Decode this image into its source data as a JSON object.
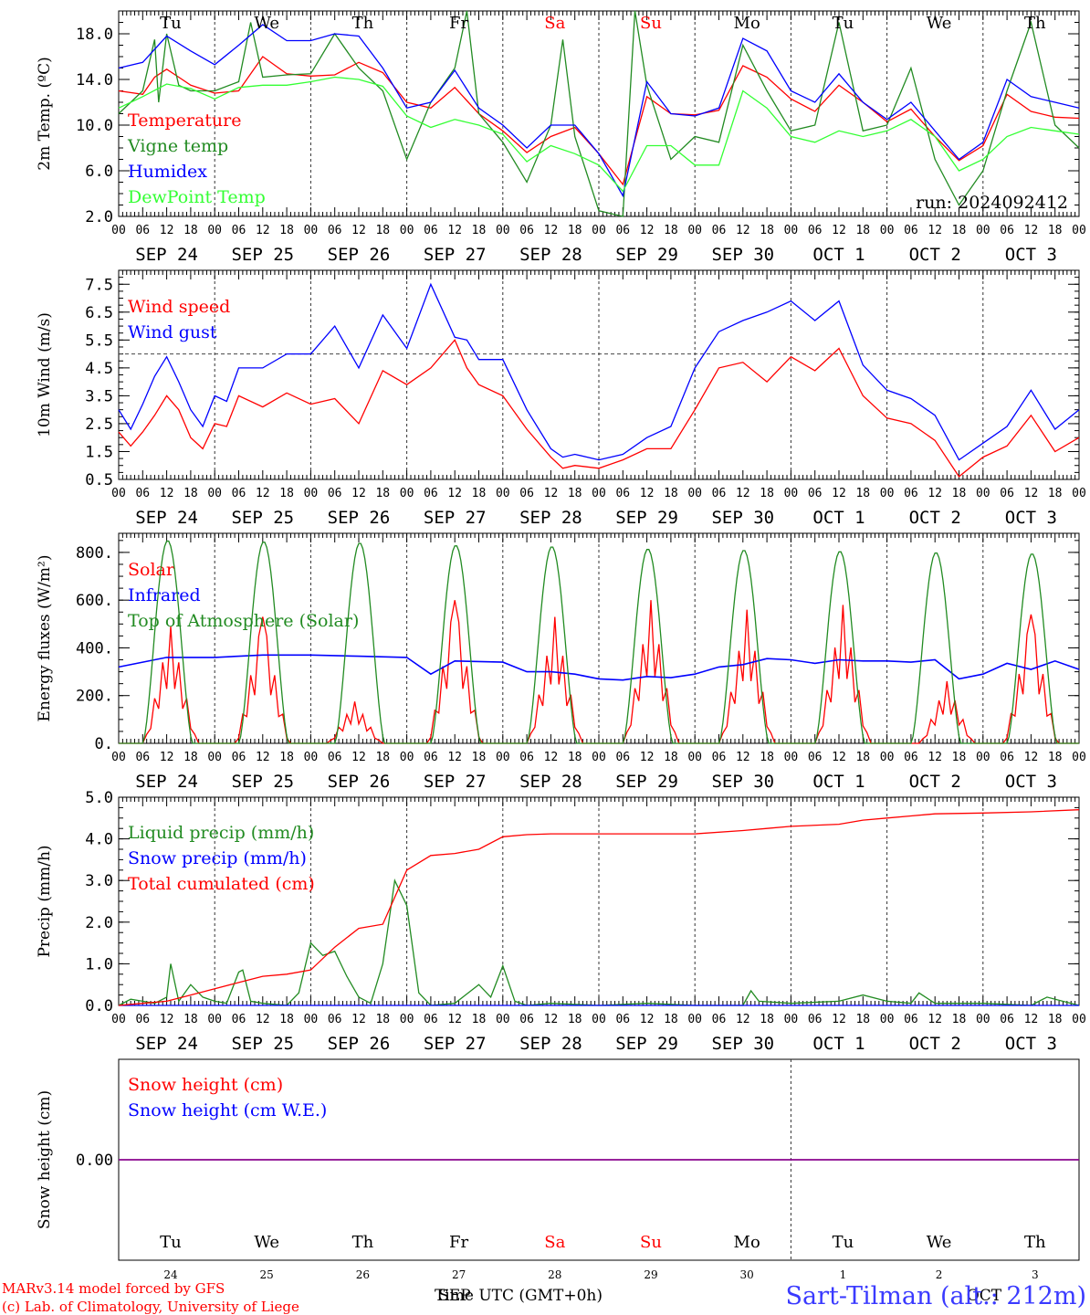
{
  "colors": {
    "red": "#ff0000",
    "green": "#228b22",
    "blue": "#0000ff",
    "lightgreen": "#33ff33",
    "purple": "#8b008b",
    "axis": "#000000",
    "grid": "#555555"
  },
  "days": [
    "Tu",
    "We",
    "Th",
    "Fr",
    "Sa",
    "Su",
    "Mo",
    "Tu",
    "We",
    "Th"
  ],
  "weekend_days": [
    4,
    5
  ],
  "date_labels": [
    "SEP 24",
    "SEP 25",
    "SEP 26",
    "SEP 27",
    "SEP 28",
    "SEP 29",
    "SEP 30",
    "OCT  1",
    "OCT  2",
    "OCT  3"
  ],
  "hour_labels": [
    "00",
    "06",
    "12",
    "18"
  ],
  "hour_end_label": "00",
  "day_numbers": [
    "24",
    "25",
    "26",
    "27",
    "28",
    "29",
    "30",
    "1",
    "2",
    "3"
  ],
  "run_label": "run: 2024092412",
  "footer": {
    "model": "MARv3.14 model forced by GFS",
    "lab": "(c) Lab. of Climatology, University of Liege",
    "time_label": "Time UTC (GMT+0h)",
    "month_left": "SEP",
    "month_right": "OCT",
    "station": "Sart-Tilman (alt.: 212m)"
  },
  "chart_data": [
    {
      "id": "temp",
      "type": "line",
      "ylabel": "2m Temp. (ºC)",
      "ylim": [
        2.0,
        20.0
      ],
      "yticks": [
        "2.0",
        "6.0",
        "10.0",
        "14.0",
        "18.0"
      ],
      "yticks_values": [
        2,
        6,
        10,
        14,
        18
      ],
      "x_unit": "hours since SEP 24 00 UTC",
      "series": [
        {
          "name": "Temperature",
          "color": "#ff0000",
          "x": [
            0,
            6,
            9,
            12,
            15,
            18,
            24,
            30,
            36,
            42,
            48,
            54,
            60,
            66,
            72,
            78,
            84,
            90,
            96,
            102,
            108,
            114,
            120,
            126,
            132,
            138,
            144,
            150,
            156,
            162,
            168,
            174,
            180,
            186,
            192,
            198,
            204,
            210,
            216,
            222,
            228,
            234,
            240
          ],
          "y": [
            13.0,
            12.7,
            14.2,
            14.9,
            14.2,
            13.5,
            12.8,
            13.0,
            16.0,
            14.5,
            14.3,
            14.4,
            15.5,
            14.6,
            12.0,
            11.5,
            13.3,
            11.0,
            9.5,
            7.6,
            9.0,
            9.8,
            7.5,
            4.8,
            12.5,
            11.0,
            10.9,
            11.3,
            15.2,
            14.2,
            12.3,
            11.2,
            13.5,
            12.0,
            10.3,
            11.4,
            9.0,
            6.9,
            8.2,
            12.7,
            11.2,
            10.7,
            10.6
          ]
        },
        {
          "name": "Vigne temp",
          "color": "#228b22",
          "x": [
            0,
            6,
            9,
            10,
            12,
            15,
            18,
            24,
            30,
            33,
            36,
            42,
            48,
            54,
            60,
            66,
            72,
            78,
            84,
            87,
            90,
            96,
            102,
            108,
            111,
            114,
            120,
            126,
            129,
            132,
            138,
            144,
            150,
            156,
            162,
            168,
            174,
            180,
            186,
            192,
            198,
            204,
            210,
            216,
            222,
            228,
            234,
            240
          ],
          "y": [
            11.0,
            13.0,
            17.5,
            12.0,
            18.0,
            13.5,
            13.0,
            13.0,
            13.8,
            19.0,
            14.2,
            14.4,
            14.5,
            18.0,
            15.0,
            13.0,
            7.0,
            12.0,
            15.0,
            20.0,
            11.0,
            8.5,
            5.0,
            10.0,
            17.5,
            9.0,
            2.5,
            1.5,
            20.0,
            13.5,
            7.0,
            9.0,
            8.5,
            17.0,
            13.0,
            9.5,
            10.0,
            19.0,
            9.5,
            10.0,
            15.0,
            7.0,
            3.0,
            6.0,
            13.0,
            19.0,
            10.0,
            8.0
          ]
        },
        {
          "name": "Humidex",
          "color": "#0000ff",
          "x": [
            0,
            6,
            12,
            18,
            24,
            30,
            36,
            42,
            48,
            54,
            60,
            66,
            72,
            78,
            84,
            90,
            96,
            102,
            108,
            114,
            120,
            126,
            132,
            138,
            144,
            150,
            156,
            162,
            168,
            174,
            180,
            186,
            192,
            198,
            204,
            210,
            216,
            222,
            228,
            234,
            240
          ],
          "y": [
            15.0,
            15.5,
            17.8,
            16.5,
            15.3,
            17.0,
            18.8,
            17.4,
            17.4,
            18.0,
            17.8,
            15.0,
            11.5,
            12.0,
            14.8,
            11.5,
            10.0,
            8.0,
            10.0,
            10.0,
            7.5,
            3.8,
            13.8,
            11.0,
            10.8,
            11.5,
            17.6,
            16.5,
            13.0,
            12.0,
            14.5,
            12.0,
            10.5,
            12.0,
            9.5,
            7.0,
            8.5,
            14.0,
            12.5,
            12.0,
            11.5
          ]
        },
        {
          "name": "DewPoint Temp",
          "color": "#33ff33",
          "x": [
            0,
            6,
            12,
            18,
            24,
            30,
            36,
            42,
            48,
            54,
            60,
            66,
            72,
            78,
            84,
            90,
            96,
            102,
            108,
            114,
            120,
            126,
            132,
            138,
            144,
            150,
            156,
            162,
            168,
            174,
            180,
            186,
            192,
            198,
            204,
            210,
            216,
            222,
            228,
            234,
            240
          ],
          "y": [
            11.5,
            12.5,
            13.6,
            13.2,
            12.3,
            13.3,
            13.5,
            13.5,
            13.8,
            14.2,
            14.0,
            13.4,
            10.8,
            9.8,
            10.5,
            10.0,
            9.2,
            6.8,
            8.2,
            7.5,
            6.5,
            4.2,
            8.2,
            8.2,
            6.5,
            6.5,
            13.0,
            11.5,
            9.0,
            8.5,
            9.5,
            9.0,
            9.5,
            10.5,
            9.0,
            6.0,
            7.0,
            9.0,
            9.8,
            9.5,
            9.2
          ]
        }
      ]
    },
    {
      "id": "wind",
      "type": "line",
      "ylabel": "10m Wind (m/s)",
      "ylim": [
        0.5,
        8.0
      ],
      "yticks": [
        "0.5",
        "1.5",
        "2.5",
        "3.5",
        "4.5",
        "5.5",
        "6.5",
        "7.5"
      ],
      "yticks_values": [
        0.5,
        1.5,
        2.5,
        3.5,
        4.5,
        5.5,
        6.5,
        7.5
      ],
      "reference_line": 5.0,
      "x_unit": "hours since SEP 24 00 UTC",
      "series": [
        {
          "name": "Wind speed",
          "color": "#ff0000",
          "x": [
            0,
            3,
            6,
            9,
            12,
            15,
            18,
            21,
            24,
            27,
            30,
            36,
            42,
            48,
            54,
            60,
            66,
            72,
            78,
            84,
            87,
            90,
            96,
            102,
            108,
            111,
            114,
            120,
            126,
            132,
            138,
            144,
            150,
            156,
            162,
            168,
            174,
            180,
            186,
            192,
            198,
            204,
            210,
            216,
            222,
            228,
            234,
            240
          ],
          "y": [
            2.2,
            1.7,
            2.2,
            2.8,
            3.5,
            3.0,
            2.0,
            1.6,
            2.5,
            2.4,
            3.5,
            3.1,
            3.6,
            3.2,
            3.4,
            2.5,
            4.4,
            3.9,
            4.5,
            5.5,
            4.5,
            3.9,
            3.5,
            2.3,
            1.3,
            0.9,
            1.0,
            0.9,
            1.2,
            1.6,
            1.6,
            3.0,
            4.5,
            4.7,
            4.0,
            4.9,
            4.4,
            5.2,
            3.5,
            2.7,
            2.5,
            1.9,
            0.6,
            1.3,
            1.7,
            2.8,
            1.5,
            2.0
          ]
        },
        {
          "name": "Wind gust",
          "color": "#0000ff",
          "x": [
            0,
            3,
            6,
            9,
            12,
            15,
            18,
            21,
            24,
            27,
            30,
            36,
            42,
            48,
            54,
            60,
            66,
            72,
            78,
            84,
            87,
            90,
            96,
            102,
            108,
            111,
            114,
            120,
            126,
            132,
            138,
            144,
            150,
            156,
            162,
            168,
            174,
            180,
            186,
            192,
            198,
            204,
            210,
            216,
            222,
            228,
            234,
            240
          ],
          "y": [
            3.0,
            2.3,
            3.2,
            4.2,
            4.9,
            4.0,
            3.0,
            2.4,
            3.5,
            3.3,
            4.5,
            4.5,
            5.0,
            5.0,
            6.0,
            4.5,
            6.4,
            5.2,
            7.5,
            5.6,
            5.5,
            4.8,
            4.8,
            3.0,
            1.6,
            1.3,
            1.4,
            1.2,
            1.4,
            2.0,
            2.4,
            4.5,
            5.8,
            6.2,
            6.5,
            6.9,
            6.2,
            6.9,
            4.6,
            3.7,
            3.4,
            2.8,
            1.2,
            1.8,
            2.4,
            3.7,
            2.3,
            3.0
          ]
        }
      ]
    },
    {
      "id": "energy",
      "type": "line",
      "ylabel": "Energy fluxes (W/m²)",
      "ylim": [
        0,
        880
      ],
      "yticks": [
        "0.",
        "200.",
        "400.",
        "600.",
        "800."
      ],
      "yticks_values": [
        0,
        200,
        400,
        600,
        800
      ],
      "x_unit": "hours since SEP 24 00 UTC",
      "series": [
        {
          "name": "Solar",
          "color": "#ff0000",
          "peak_w": [
            490,
            530,
            175,
            600,
            530,
            600,
            560,
            580,
            260,
            540
          ],
          "peak_hour": [
            13,
            12,
            11,
            12,
            13,
            13,
            13,
            13,
            15,
            12
          ],
          "halfwidth_h": 5
        },
        {
          "name": "Infrared",
          "color": "#0000ff",
          "x": [
            0,
            12,
            24,
            36,
            48,
            60,
            72,
            78,
            84,
            96,
            102,
            108,
            114,
            120,
            126,
            132,
            138,
            144,
            150,
            156,
            162,
            168,
            174,
            180,
            186,
            192,
            198,
            204,
            210,
            216,
            222,
            228,
            234,
            240
          ],
          "y": [
            320,
            360,
            360,
            370,
            370,
            365,
            360,
            290,
            345,
            340,
            300,
            300,
            290,
            270,
            265,
            280,
            275,
            290,
            320,
            330,
            355,
            350,
            335,
            350,
            345,
            345,
            340,
            350,
            270,
            290,
            335,
            310,
            345,
            310
          ]
        },
        {
          "name": "Top of Atmosphere (Solar)",
          "color": "#228b22",
          "peak_w": [
            850,
            845,
            840,
            830,
            825,
            815,
            810,
            805,
            800,
            795
          ],
          "sunrise_h": 6,
          "sunset_h": 18.5
        }
      ]
    },
    {
      "id": "precip",
      "type": "line",
      "ylabel": "Precip (mm/h)",
      "ylim": [
        0,
        5.0
      ],
      "yticks": [
        "0.0",
        "1.0",
        "2.0",
        "3.0",
        "4.0",
        "5.0"
      ],
      "yticks_values": [
        0,
        1,
        2,
        3,
        4,
        5
      ],
      "x_unit": "hours since SEP 24 00 UTC",
      "series": [
        {
          "name": "Liquid precip (mm/h)",
          "color": "#228b22",
          "x": [
            0,
            3,
            6,
            9,
            12,
            13,
            15,
            18,
            21,
            24,
            27,
            30,
            31,
            33,
            36,
            42,
            45,
            48,
            51,
            54,
            57,
            60,
            63,
            66,
            69,
            72,
            75,
            78,
            84,
            90,
            93,
            96,
            99,
            102,
            108,
            120,
            132,
            144,
            156,
            158,
            160,
            168,
            180,
            186,
            192,
            198,
            200,
            204,
            216,
            228,
            232,
            240
          ],
          "y": [
            0.0,
            0.15,
            0.1,
            0.05,
            0.2,
            1.0,
            0.1,
            0.5,
            0.2,
            0.1,
            0.05,
            0.8,
            0.85,
            0.1,
            0.05,
            0.0,
            0.3,
            1.5,
            1.2,
            1.3,
            0.7,
            0.2,
            0.05,
            1.0,
            3.0,
            2.4,
            0.3,
            0.0,
            0.05,
            0.5,
            0.2,
            0.95,
            0.1,
            0.0,
            0.05,
            0.0,
            0.05,
            0.0,
            0.0,
            0.35,
            0.1,
            0.05,
            0.1,
            0.25,
            0.1,
            0.05,
            0.3,
            0.05,
            0.05,
            0.0,
            0.2,
            0.0
          ]
        },
        {
          "name": "Snow precip (mm/h)",
          "color": "#0000ff",
          "x": [
            0,
            240
          ],
          "y": [
            0,
            0
          ]
        },
        {
          "name": "Total cumulated (cm)",
          "color": "#ff0000",
          "x": [
            0,
            6,
            12,
            18,
            24,
            30,
            36,
            42,
            48,
            54,
            60,
            66,
            72,
            78,
            84,
            90,
            96,
            102,
            108,
            114,
            120,
            132,
            144,
            156,
            162,
            168,
            180,
            186,
            192,
            198,
            204,
            216,
            228,
            240
          ],
          "y": [
            0.0,
            0.05,
            0.1,
            0.25,
            0.4,
            0.55,
            0.7,
            0.75,
            0.85,
            1.4,
            1.85,
            1.95,
            3.25,
            3.6,
            3.65,
            3.75,
            4.05,
            4.1,
            4.12,
            4.12,
            4.12,
            4.12,
            4.12,
            4.2,
            4.25,
            4.3,
            4.35,
            4.45,
            4.5,
            4.55,
            4.6,
            4.62,
            4.65,
            4.7
          ]
        }
      ]
    },
    {
      "id": "snow",
      "type": "line",
      "ylabel": "Snow height (cm)",
      "ylim": [
        -1,
        1
      ],
      "yticks": [
        "0.00"
      ],
      "yticks_values": [
        0
      ],
      "x_unit": "hours since SEP 24 00 UTC",
      "series": [
        {
          "name": "Snow height (cm)",
          "color": "#ff0000",
          "x": [
            0,
            240
          ],
          "y": [
            0,
            0
          ]
        },
        {
          "name": "Snow height (cm W.E.)",
          "color": "#0000ff",
          "x": [
            0,
            240
          ],
          "y": [
            0,
            0
          ]
        }
      ]
    }
  ]
}
